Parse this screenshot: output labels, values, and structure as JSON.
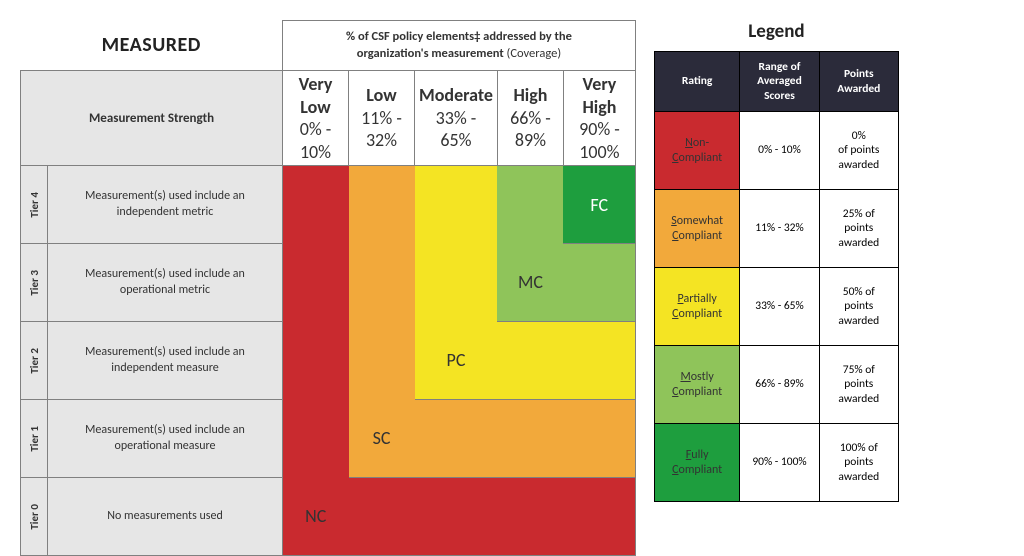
{
  "colors": {
    "nc": "#c92a2f",
    "sc": "#f2a93b",
    "pc": "#f4e423",
    "mc": "#8fc45a",
    "fc": "#1e9e3e",
    "grey": "#e6e6e6",
    "border": "#808080",
    "legendHeadBg": "#2b2b3a"
  },
  "matrix": {
    "measuredTitle": "MEASURED",
    "coverageTitleHtml": "% of CSF policy elements‡ addressed by the<br>organization's measurement ",
    "coverageTitleLight": "(Coverage)",
    "msHeader": "Measurement Strength",
    "columns": [
      {
        "name": "Very Low",
        "range": "0% - 10%"
      },
      {
        "name": "Low",
        "range": "11% - 32%"
      },
      {
        "name": "Moderate",
        "range": "33% - 65%"
      },
      {
        "name": "High",
        "range": "66% - 89%"
      },
      {
        "name": "Very High",
        "range": "90% - 100%"
      }
    ],
    "rows": [
      {
        "tier": "Tier 4",
        "desc": "Measurement(s) used include an independent metric"
      },
      {
        "tier": "Tier 3",
        "desc": "Measurement(s) used include an operational metric"
      },
      {
        "tier": "Tier 2",
        "desc": "Measurement(s) used include an independent measure"
      },
      {
        "tier": "Tier 1",
        "desc": "Measurement(s) used include an operational measure"
      },
      {
        "tier": "Tier 0",
        "desc": "No measurements used"
      }
    ],
    "labels": {
      "nc": "NC",
      "sc": "SC",
      "pc": "PC",
      "mc": "MC",
      "fc": "FC"
    }
  },
  "legend": {
    "title": "Legend",
    "headers": {
      "rating": "Rating",
      "range": "Range of Averaged Scores",
      "points": "Points Awarded"
    },
    "rows": [
      {
        "colorKey": "nc",
        "rating_pre": "N",
        "rating_mid": "on-",
        "rating_u2": "C",
        "rating_post": "ompliant",
        "range": "0% - 10%",
        "points": "0%\nof points awarded"
      },
      {
        "colorKey": "sc",
        "rating_pre": "S",
        "rating_mid": "omewhat ",
        "rating_u2": "C",
        "rating_post": "ompliant",
        "range": "11% - 32%",
        "points": "25% of points awarded"
      },
      {
        "colorKey": "pc",
        "rating_pre": "P",
        "rating_mid": "artially ",
        "rating_u2": "C",
        "rating_post": "ompliant",
        "range": "33% - 65%",
        "points": "50% of points awarded"
      },
      {
        "colorKey": "mc",
        "rating_pre": "M",
        "rating_mid": "ostly ",
        "rating_u2": "C",
        "rating_post": "ompliant",
        "range": "66% - 89%",
        "points": "75% of points awarded"
      },
      {
        "colorKey": "fc",
        "rating_pre": "F",
        "rating_mid": "ully ",
        "rating_u2": "C",
        "rating_post": "ompliant",
        "range": "90% - 100%",
        "points": "100% of points awarded"
      }
    ]
  }
}
